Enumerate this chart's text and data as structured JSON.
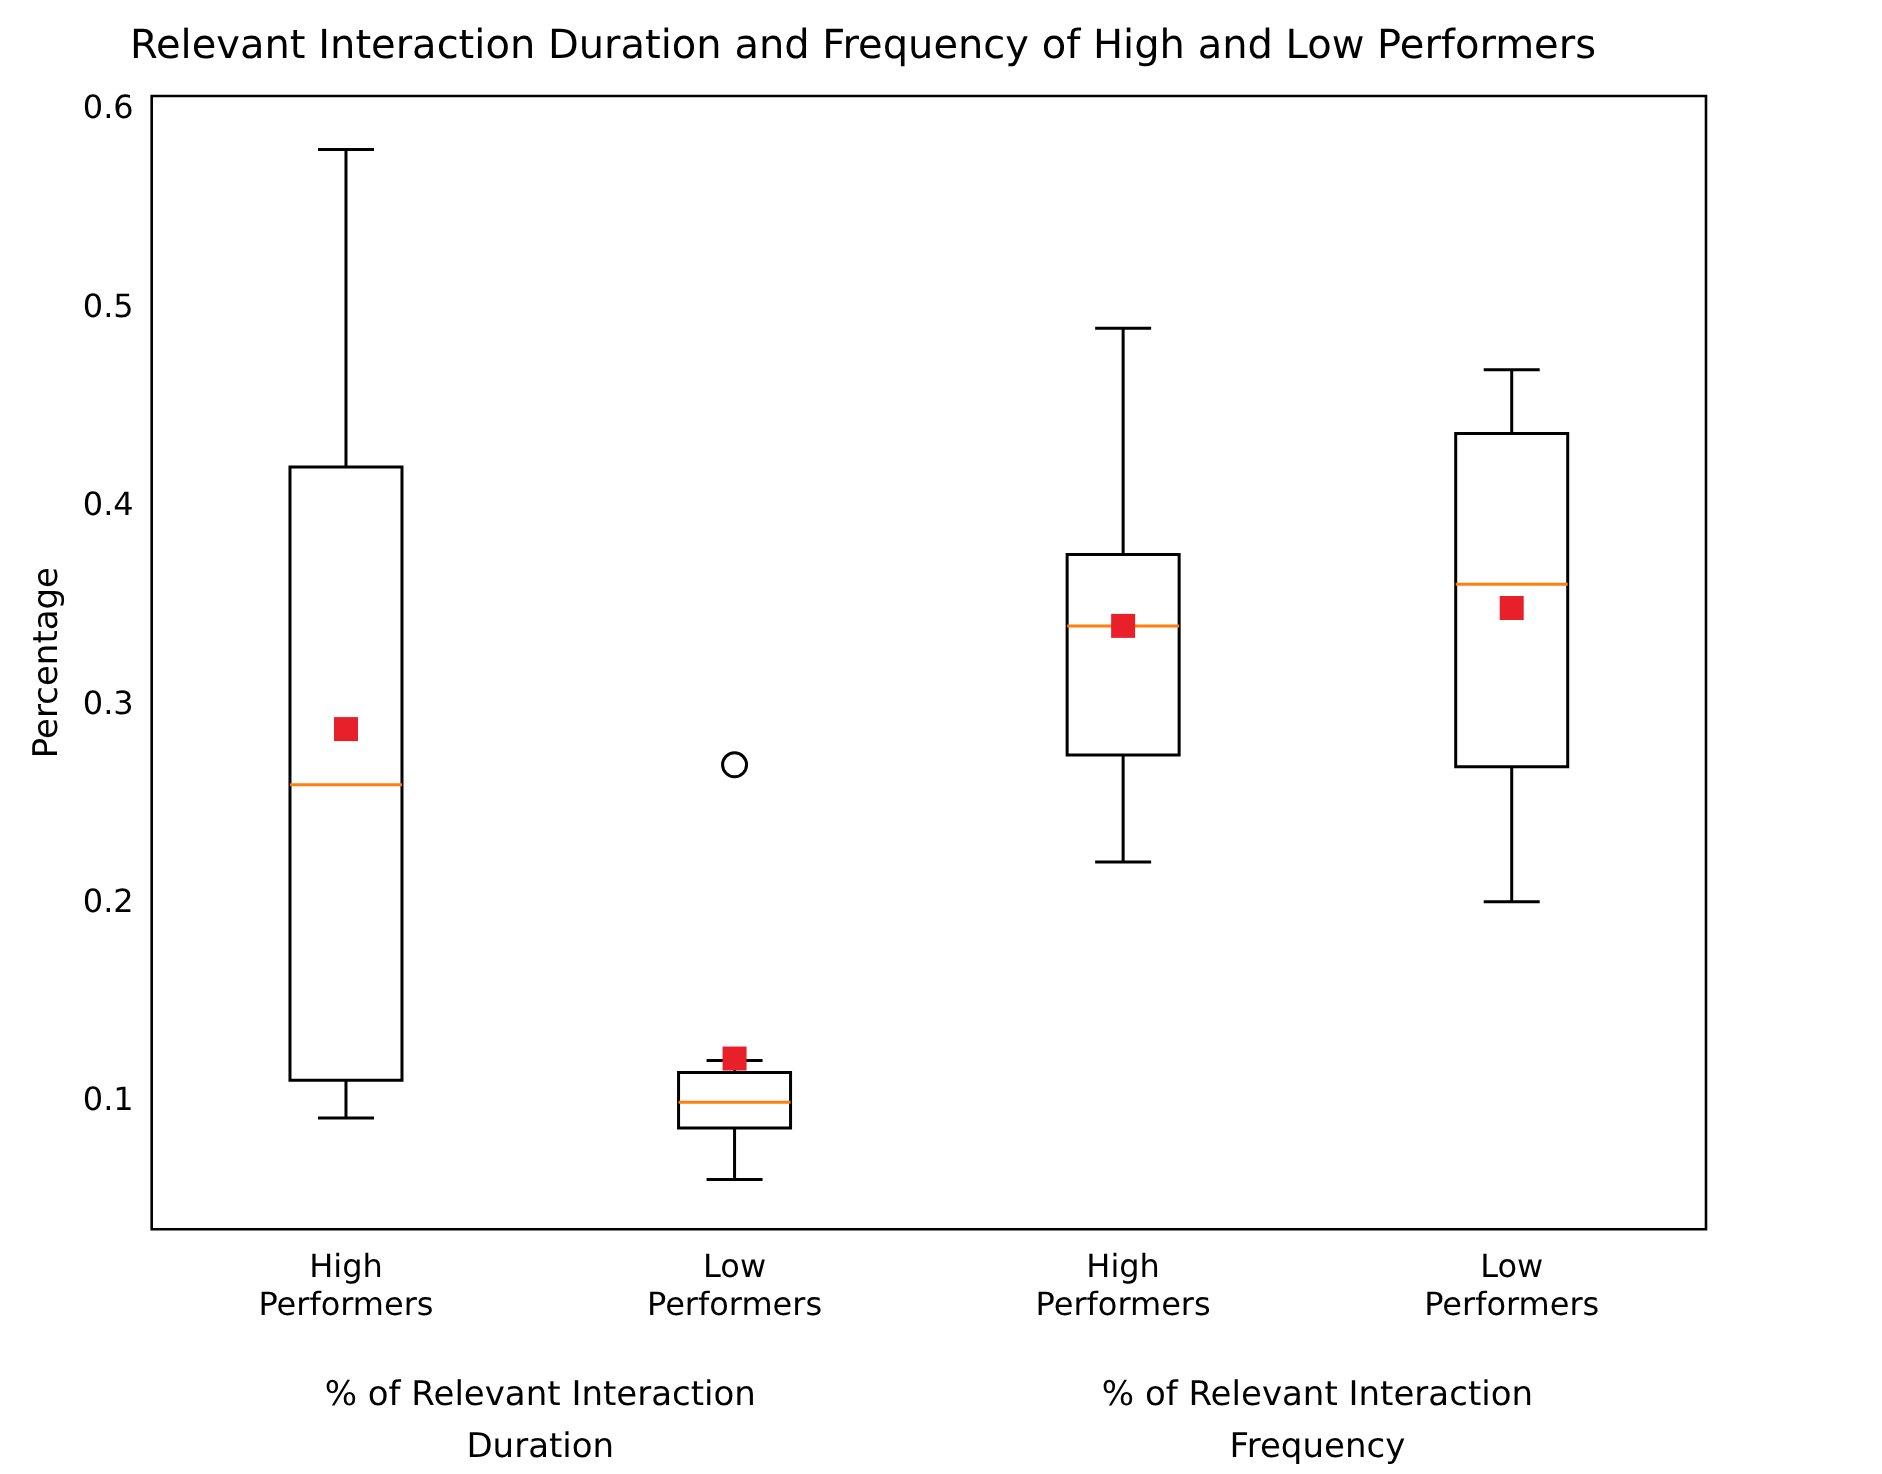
{
  "chart_data": {
    "type": "box",
    "title": "Relevant Interaction Duration and Frequency of High and Low Performers",
    "ylabel": "Percentage",
    "categories": [
      "High Performers",
      "Low Performers",
      "High Performers",
      "Low Performers"
    ],
    "annotations": [
      "% of Relevant Interaction Duration",
      "% of Relevant Interaction Frequency"
    ],
    "ylim": [
      0.036,
      0.607
    ],
    "yticks": [
      0.1,
      0.2,
      0.3,
      0.4,
      0.5,
      0.6
    ],
    "grid": false,
    "series": [
      {
        "color": "#000000",
        "boxes": [
          {
            "low": 0.092,
            "q1": 0.111,
            "median": 0.26,
            "q3": 0.42,
            "high": 0.58,
            "mean": 0.288
          },
          {
            "low": 0.061,
            "q1": 0.087,
            "median": 0.1,
            "q3": 0.115,
            "high": 0.121,
            "mean": 0.122,
            "outliers": [
              0.27
            ]
          },
          {
            "low": 0.221,
            "q1": 0.275,
            "median": 0.34,
            "q3": 0.376,
            "high": 0.49,
            "mean": 0.34
          },
          {
            "low": 0.201,
            "q1": 0.269,
            "median": 0.361,
            "q3": 0.437,
            "high": 0.469,
            "mean": 0.349
          }
        ]
      }
    ]
  }
}
